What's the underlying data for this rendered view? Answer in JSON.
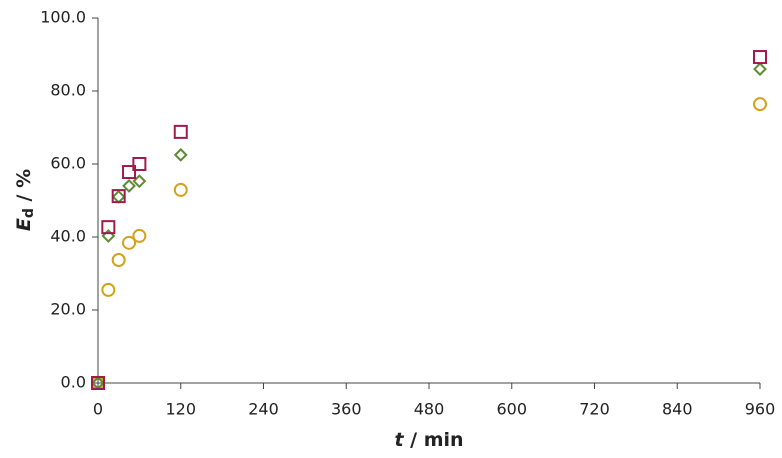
{
  "chart_data": {
    "type": "scatter",
    "xlabel": [
      "t",
      " / min"
    ],
    "ylabel": [
      "E",
      "d",
      " / %"
    ],
    "x": [
      0,
      15,
      30,
      45,
      60,
      120,
      960
    ],
    "series": [
      {
        "marker": "circle",
        "color": "#d4a21a",
        "values": [
          0,
          25.5,
          33.7,
          38.4,
          40.3,
          52.9,
          76.4
        ]
      },
      {
        "marker": "diamond",
        "color": "#5b8c32",
        "values": [
          0,
          40.3,
          51.0,
          54.0,
          55.3,
          62.5,
          86.0
        ]
      },
      {
        "marker": "square",
        "color": "#9e1b4b",
        "values": [
          0,
          42.7,
          51.2,
          57.8,
          60.0,
          68.8,
          89.3
        ]
      }
    ],
    "xlim": [
      0,
      960
    ],
    "xticks": [
      0,
      120,
      240,
      360,
      480,
      600,
      720,
      840,
      960
    ],
    "ylim": [
      0,
      100
    ],
    "yticks": [
      {
        "value": 0,
        "label": "0.0"
      },
      {
        "value": 20,
        "label": "20.0"
      },
      {
        "value": 40,
        "label": "40.0"
      },
      {
        "value": 60,
        "label": "60.0"
      },
      {
        "value": 80,
        "label": "80.0"
      },
      {
        "value": 100,
        "label": "100.0"
      }
    ],
    "grid": false
  }
}
